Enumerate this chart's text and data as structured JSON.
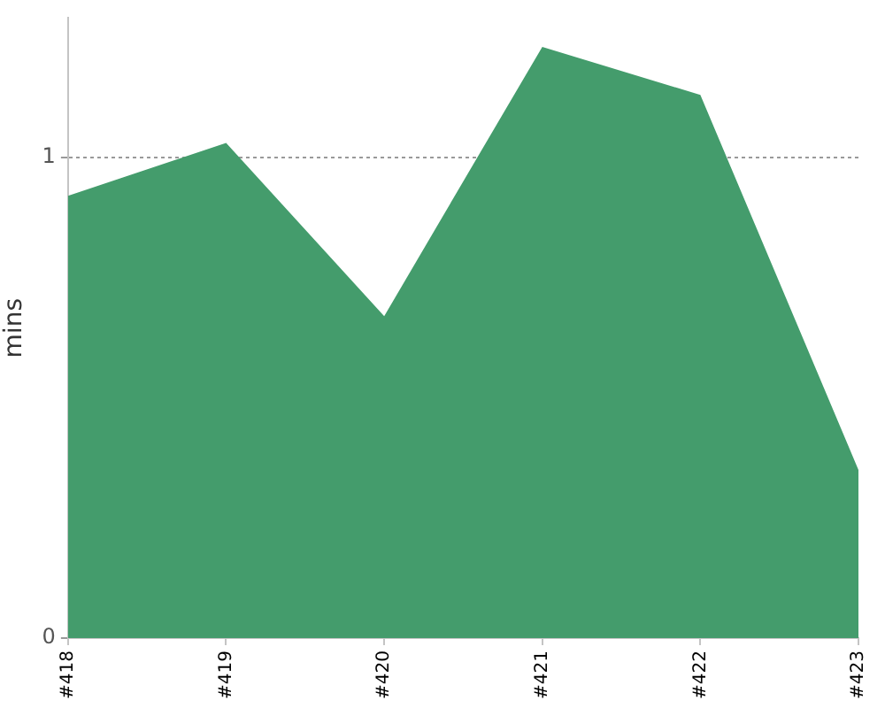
{
  "chart_data": {
    "type": "area",
    "categories": [
      "#418",
      "#419",
      "#420",
      "#421",
      "#422",
      "#423"
    ],
    "values": [
      0.92,
      1.03,
      0.67,
      1.23,
      1.13,
      0.35
    ],
    "color": "#449c6c",
    "ylabel": "mins",
    "ylim": [
      0,
      1.29
    ],
    "yticks": [
      0,
      1
    ],
    "grid": "y"
  }
}
